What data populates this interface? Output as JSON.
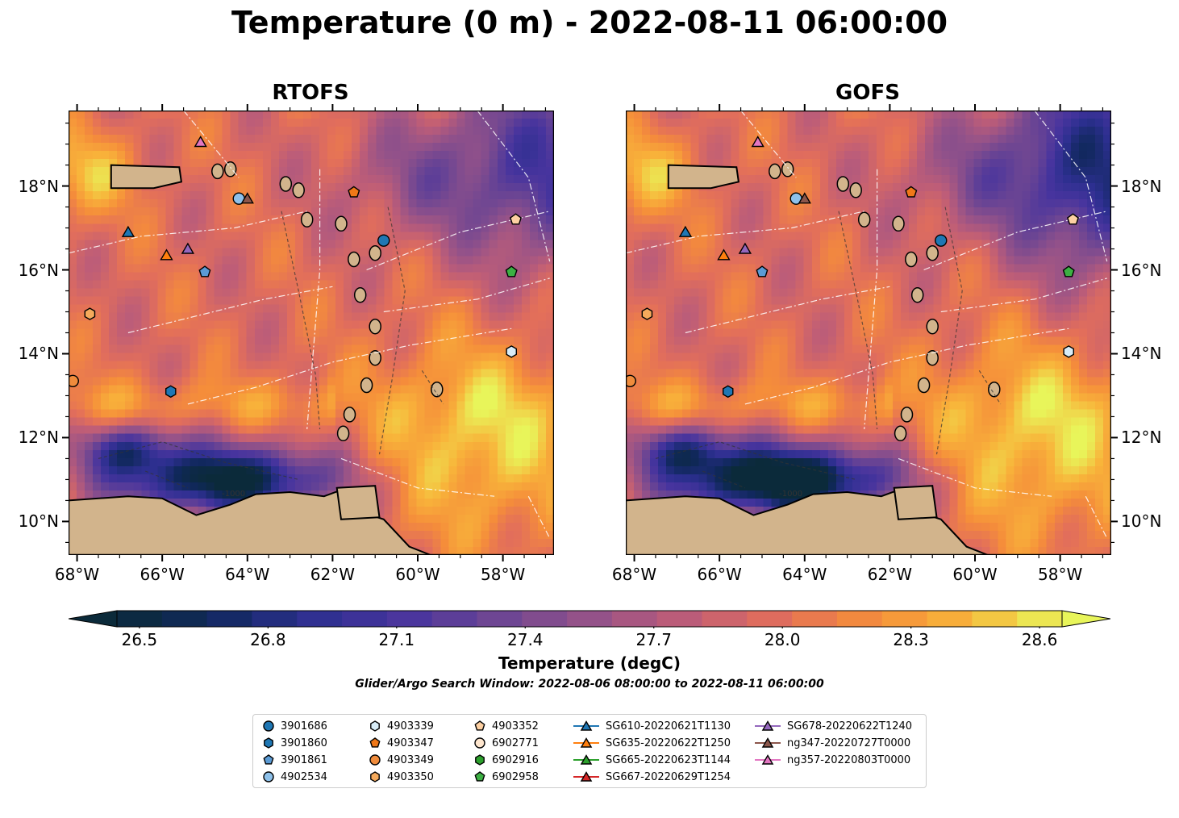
{
  "title": "Temperature (0 m) - 2022-08-11 06:00:00",
  "panels": [
    {
      "title": "RTOFS"
    },
    {
      "title": "GOFS"
    }
  ],
  "colorbar": {
    "label": "Temperature (degC)",
    "ticks": [
      "26.5",
      "26.8",
      "27.1",
      "27.4",
      "27.7",
      "28.0",
      "28.3",
      "28.6"
    ]
  },
  "search_window": "Glider/Argo Search Window: 2022-08-06 08:00:00 to 2022-08-11 06:00:00",
  "chart_data": {
    "type": "heatmap",
    "title": "Temperature (0 m) - 2022-08-11 06:00:00",
    "subplots": [
      "RTOFS",
      "GOFS"
    ],
    "x_ticks": [
      "68°W",
      "66°W",
      "64°W",
      "62°W",
      "60°W",
      "58°W"
    ],
    "y_ticks": [
      "10°N",
      "12°N",
      "14°N",
      "16°N",
      "18°N"
    ],
    "x_range": [
      -68.2,
      -56.8
    ],
    "y_range": [
      9.2,
      19.8
    ],
    "color_range": [
      26.5,
      28.6
    ],
    "colorbar_label": "Temperature (degC)",
    "contour_label": "-1000",
    "platforms": [
      {
        "name": "3901686",
        "marker": "circle",
        "color": "#1f77b4",
        "lon": -60.8,
        "lat": 16.7
      },
      {
        "name": "3901860",
        "marker": "hexagon",
        "color": "#1f77b4",
        "lon": -65.8,
        "lat": 13.1
      },
      {
        "name": "3901861",
        "marker": "pentagon",
        "color": "#5b9bd5",
        "lon": -65.0,
        "lat": 15.95
      },
      {
        "name": "4902534",
        "marker": "circle",
        "color": "#8ec1ea",
        "lon": -64.2,
        "lat": 17.7
      },
      {
        "name": "4903339",
        "marker": "hexagon",
        "color": "#d8ecf7",
        "lon": -57.8,
        "lat": 14.05
      },
      {
        "name": "4903347",
        "marker": "pentagon",
        "color": "#f07818",
        "lon": -61.5,
        "lat": 17.85
      },
      {
        "name": "4903349",
        "marker": "circle",
        "color": "#f08c3c",
        "lon": -68.1,
        "lat": 13.35
      },
      {
        "name": "4903350",
        "marker": "hexagon",
        "color": "#f5aa5c",
        "lon": -67.7,
        "lat": 14.95
      },
      {
        "name": "4903352",
        "marker": "pentagon",
        "color": "#fdd0a2",
        "lon": -57.7,
        "lat": 17.2
      },
      {
        "name": "6902771",
        "marker": "circle",
        "color": "#fee6ce",
        "lon": null,
        "lat": null
      },
      {
        "name": "6902916",
        "marker": "hexagon",
        "color": "#2ca02c",
        "lon": null,
        "lat": null
      },
      {
        "name": "6902958",
        "marker": "pentagon",
        "color": "#3cb043",
        "lon": -57.8,
        "lat": 15.95
      },
      {
        "name": "SG610-20220621T1130",
        "marker": "triangle",
        "color": "#1f77b4",
        "lon": -66.8,
        "lat": 16.9
      },
      {
        "name": "SG635-20220622T1250",
        "marker": "triangle",
        "color": "#ff7f0e",
        "lon": -65.9,
        "lat": 16.35
      },
      {
        "name": "SG665-20220623T1144",
        "marker": "triangle",
        "color": "#2ca02c",
        "lon": null,
        "lat": null
      },
      {
        "name": "SG667-20220629T1254",
        "marker": "triangle",
        "color": "#d62728",
        "lon": null,
        "lat": null
      },
      {
        "name": "SG678-20220622T1240",
        "marker": "triangle",
        "color": "#9467bd",
        "lon": -65.4,
        "lat": 16.5
      },
      {
        "name": "ng347-20220727T0000",
        "marker": "triangle",
        "color": "#8c564b",
        "lon": -64.0,
        "lat": 17.7
      },
      {
        "name": "ng357-20220803T0000",
        "marker": "triangle",
        "color": "#e377c2",
        "lon": -65.1,
        "lat": 19.05
      }
    ]
  }
}
